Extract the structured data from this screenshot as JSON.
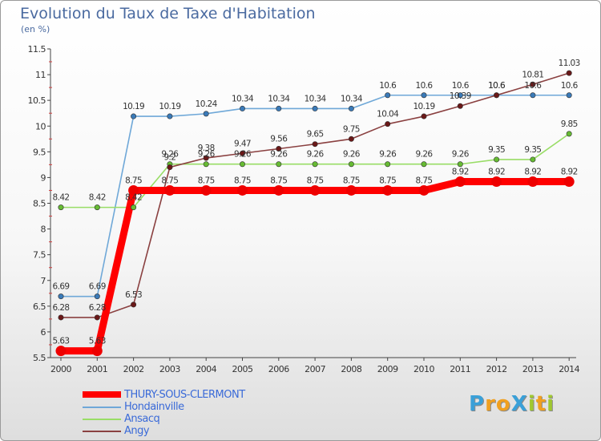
{
  "title": "Evolution du Taux de Taxe d'Habitation",
  "unit_label": "(en %)",
  "logo": {
    "text": "ProXiti",
    "letters": [
      {
        "ch": "P",
        "color": "#3aa0d8"
      },
      {
        "ch": "r",
        "color": "#f0a020"
      },
      {
        "ch": "o",
        "color": "#f0a020"
      },
      {
        "ch": "X",
        "color": "#3aa0d8"
      },
      {
        "ch": "i",
        "color": "#a0c830"
      },
      {
        "ch": "t",
        "color": "#f0a020"
      },
      {
        "ch": "i",
        "color": "#a0c830"
      }
    ]
  },
  "chart_data": {
    "type": "line",
    "title": "Evolution du Taux de Taxe d'Habitation",
    "ylabel": "(en %)",
    "xlabel": "",
    "x": [
      "2000",
      "2001",
      "2002",
      "2003",
      "2004",
      "2005",
      "2006",
      "2007",
      "2008",
      "2009",
      "2010",
      "2011",
      "2012",
      "2013",
      "2014"
    ],
    "ylim": [
      5.5,
      11.5
    ],
    "yticks": [
      "5.5",
      "6",
      "6.5",
      "7",
      "7.5",
      "8",
      "8.5",
      "9",
      "9.5",
      "10",
      "10.5",
      "11",
      "11.5"
    ],
    "grid": false,
    "legend_position": "bottom-left",
    "series": [
      {
        "name": "THURY-SOUS-CLERMONT",
        "color": "#ff0000",
        "marker": "#ee0000",
        "emphasis": true,
        "values": [
          5.63,
          5.63,
          8.75,
          8.75,
          8.75,
          8.75,
          8.75,
          8.75,
          8.75,
          8.75,
          8.75,
          8.92,
          8.92,
          8.92,
          8.92
        ],
        "labels": [
          "5.63",
          "5.63",
          "8.75",
          "8.75",
          "8.75",
          "8.75",
          "8.75",
          "8.75",
          "8.75",
          "8.75",
          "8.75",
          "8.92",
          "8.92",
          "8.92",
          "8.92"
        ]
      },
      {
        "name": "Hondainville",
        "color": "#6fa8d8",
        "marker": "#3a7ab8",
        "emphasis": false,
        "values": [
          6.69,
          6.69,
          10.19,
          10.19,
          10.24,
          10.34,
          10.34,
          10.34,
          10.34,
          10.6,
          10.6,
          10.6,
          10.6,
          10.6,
          10.6
        ],
        "labels": [
          "6.69",
          "6.69",
          "10.19",
          "10.19",
          "10.24",
          "10.34",
          "10.34",
          "10.34",
          "10.34",
          "10.6",
          "10.6",
          "10.6",
          "10.6",
          "10.6",
          "10.6"
        ]
      },
      {
        "name": "Ansacq",
        "color": "#99dd66",
        "marker": "#66bb33",
        "emphasis": false,
        "values": [
          8.42,
          8.42,
          8.42,
          9.26,
          9.26,
          9.26,
          9.26,
          9.26,
          9.26,
          9.26,
          9.26,
          9.26,
          9.35,
          9.35,
          9.85
        ],
        "labels": [
          "8.42",
          "8.42",
          "8.42",
          "9.26",
          "9.26",
          "9.26",
          "9.26",
          "9.26",
          "9.26",
          "9.26",
          "9.26",
          "9.26",
          "9.35",
          "9.35",
          "9.85"
        ]
      },
      {
        "name": "Angy",
        "color": "#8a4040",
        "marker": "#6a1818",
        "emphasis": false,
        "values": [
          6.28,
          6.28,
          6.53,
          9.2,
          9.38,
          9.47,
          9.56,
          9.65,
          9.75,
          10.04,
          10.19,
          10.39,
          10.6,
          10.81,
          11.03
        ],
        "labels": [
          "6.28",
          "6.28",
          "6.53",
          "9.2",
          "9.38",
          "9.47",
          "9.56",
          "9.65",
          "9.75",
          "10.04",
          "10.19",
          "10.39",
          "10.6",
          "10.81",
          "11.03"
        ]
      }
    ]
  }
}
